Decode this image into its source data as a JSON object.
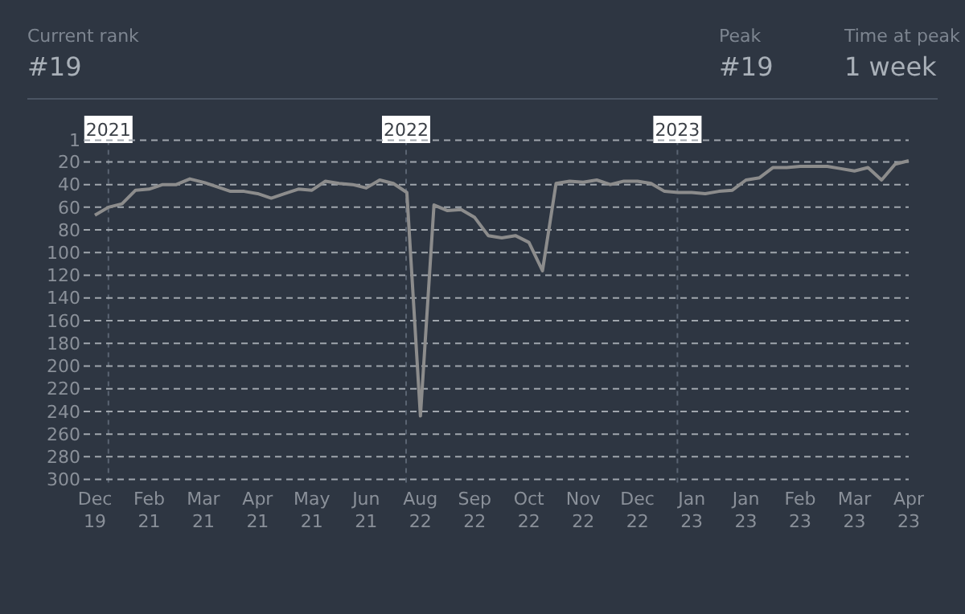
{
  "chart_data": {
    "type": "line",
    "annotations": [
      "Current rank",
      "#19",
      "Peak",
      "#19",
      "Time at peak",
      "1 week",
      "2021",
      "2022",
      "2023"
    ],
    "categories": [
      "Dec\n19",
      null,
      null,
      null,
      "Feb\n21",
      null,
      null,
      null,
      "Mar\n21",
      null,
      null,
      null,
      "Apr\n21",
      null,
      null,
      null,
      "May\n21",
      null,
      null,
      null,
      "Jun\n21",
      null,
      null,
      null,
      "Aug\n22",
      null,
      null,
      null,
      "Sep\n22",
      null,
      null,
      null,
      "Oct\n22",
      null,
      null,
      null,
      "Nov\n22",
      null,
      null,
      null,
      "Dec\n22",
      null,
      null,
      null,
      "Jan\n23",
      null,
      null,
      null,
      "Jan\n23",
      null,
      null,
      null,
      "Feb\n23",
      null,
      null,
      null,
      "Mar\n23",
      null,
      null,
      null,
      "Apr\n23"
    ],
    "series": [
      {
        "color": "#8c8c8c",
        "values": [
          67,
          60,
          57,
          45,
          44,
          40,
          40,
          35,
          38,
          42,
          46,
          46,
          48,
          52,
          48,
          44,
          45,
          37,
          39,
          40,
          43,
          36,
          39,
          47,
          244,
          58,
          63,
          62,
          69,
          85,
          87,
          85,
          91,
          116,
          39,
          37,
          38,
          36,
          40,
          37,
          37,
          39,
          46,
          47,
          47,
          48,
          46,
          45,
          36,
          34,
          25,
          25,
          24,
          24,
          24,
          26,
          28,
          25,
          36,
          22,
          19
        ]
      }
    ],
    "ylim": [
      300,
      1
    ],
    "yticks": [
      1,
      20,
      40,
      60,
      80,
      100,
      120,
      140,
      160,
      180,
      200,
      220,
      240,
      260,
      280,
      300
    ],
    "grid": "y"
  }
}
